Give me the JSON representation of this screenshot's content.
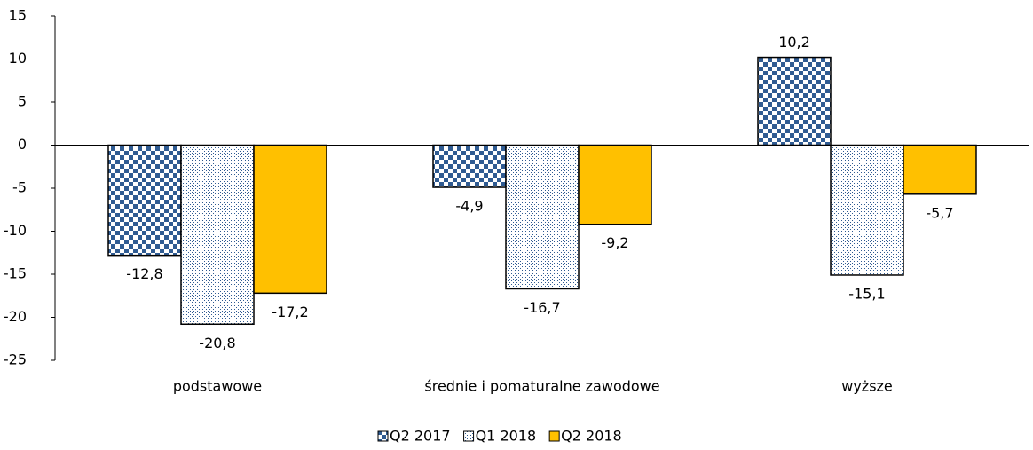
{
  "chart_data": {
    "type": "bar",
    "categories": [
      "podstawowe",
      "średnie i pomaturalne zawodowe",
      "wyższe"
    ],
    "series": [
      {
        "name": "Q2 2017",
        "color": "#2f5b92",
        "pattern": "checker",
        "values": [
          -12.8,
          -4.9,
          10.2
        ],
        "value_labels": [
          "-12,8",
          "-4,9",
          "10,2"
        ]
      },
      {
        "name": "Q1 2018",
        "color": "#2f5b92",
        "pattern": "dots",
        "values": [
          -20.8,
          -16.7,
          -15.1
        ],
        "value_labels": [
          "-20,8",
          "-16,7",
          "-15,1"
        ]
      },
      {
        "name": "Q2 2018",
        "color": "#ffc000",
        "pattern": "solid",
        "values": [
          -17.2,
          -9.2,
          -5.7
        ],
        "value_labels": [
          "-17,2",
          "-9,2",
          "-5,7"
        ]
      }
    ],
    "ylim": [
      -25,
      15
    ],
    "yticks": [
      -25,
      -20,
      -15,
      -10,
      -5,
      0,
      5,
      10,
      15
    ],
    "grid": false,
    "legend": "bottom"
  }
}
